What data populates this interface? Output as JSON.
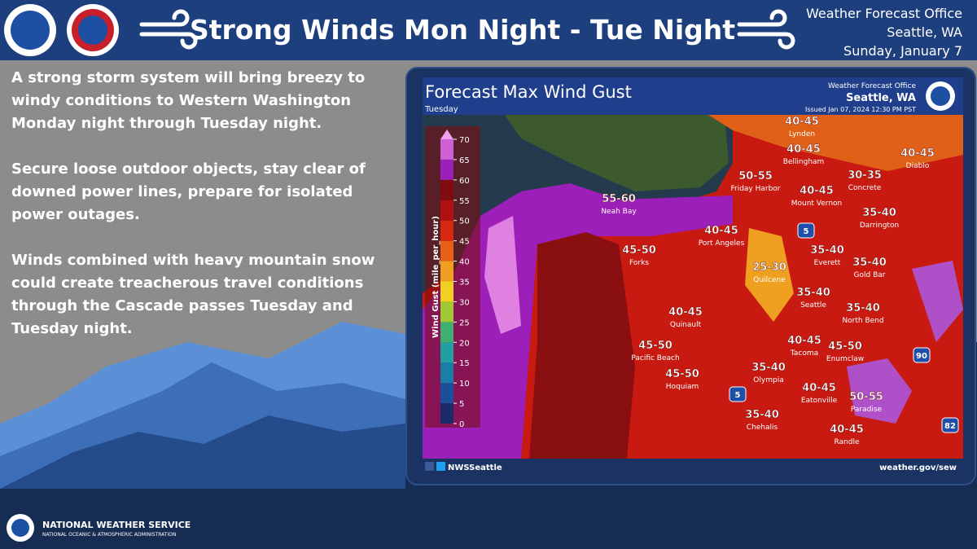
{
  "header": {
    "title": "Strong Winds Mon Night - Tue Night",
    "office": "Weather Forecast Office",
    "location": "Seattle, WA",
    "date": "Sunday, January 7"
  },
  "body": {
    "paragraphs": [
      "A strong storm system will bring breezy to windy conditions to Western Washington Monday night through Tuesday night.",
      "Secure loose outdoor objects, stay clear of downed power lines, prepare for isolated power outages.",
      "Winds combined with heavy mountain snow could create treacherous travel conditions through the Cascade passes Tuesday and Tuesday night."
    ]
  },
  "map": {
    "title": "Forecast Max Wind Gust",
    "day": "Tuesday",
    "office": "Weather Forecast Office",
    "location": "Seattle, WA",
    "issued": "Issued Jan 07, 2024 12:30 PM PST",
    "legend": {
      "label": "Wind Gust (mile_per_hour)",
      "ticks": [
        0,
        5,
        10,
        15,
        20,
        25,
        30,
        35,
        40,
        45,
        50,
        55,
        60,
        65,
        70
      ]
    },
    "places": [
      {
        "range": "40-45",
        "name": "Lynden"
      },
      {
        "range": "40-45",
        "name": "Bellingham"
      },
      {
        "range": "40-45",
        "name": "Diablo"
      },
      {
        "range": "50-55",
        "name": "Friday Harbor"
      },
      {
        "range": "30-35",
        "name": "Concrete"
      },
      {
        "range": "40-45",
        "name": "Mount Vernon"
      },
      {
        "range": "35-40",
        "name": "Darrington"
      },
      {
        "range": "55-60",
        "name": "Neah Bay"
      },
      {
        "range": "40-45",
        "name": "Port Angeles"
      },
      {
        "range": "45-50",
        "name": "Forks"
      },
      {
        "range": "35-40",
        "name": "Everett"
      },
      {
        "range": "35-40",
        "name": "Gold Bar"
      },
      {
        "range": "25-30",
        "name": "Quilcene"
      },
      {
        "range": "35-40",
        "name": "Seattle"
      },
      {
        "range": "35-40",
        "name": "North Bend"
      },
      {
        "range": "40-45",
        "name": "Quinault"
      },
      {
        "range": "45-50",
        "name": "Pacific Beach"
      },
      {
        "range": "40-45",
        "name": "Tacoma"
      },
      {
        "range": "45-50",
        "name": "Enumclaw"
      },
      {
        "range": "45-50",
        "name": "Hoquiam"
      },
      {
        "range": "35-40",
        "name": "Olympia"
      },
      {
        "range": "40-45",
        "name": "Eatonville"
      },
      {
        "range": "50-55",
        "name": "Paradise"
      },
      {
        "range": "35-40",
        "name": "Chehalis"
      },
      {
        "range": "40-45",
        "name": "Randle"
      }
    ],
    "highways": [
      "5",
      "5",
      "90",
      "82"
    ],
    "social": "NWSSeattle",
    "url": "weather.gov/sew"
  },
  "footer": {
    "agency": "NATIONAL WEATHER SERVICE",
    "parent": "NATIONAL OCEANIC & ATMOSPHERIC ADMINISTRATION"
  }
}
